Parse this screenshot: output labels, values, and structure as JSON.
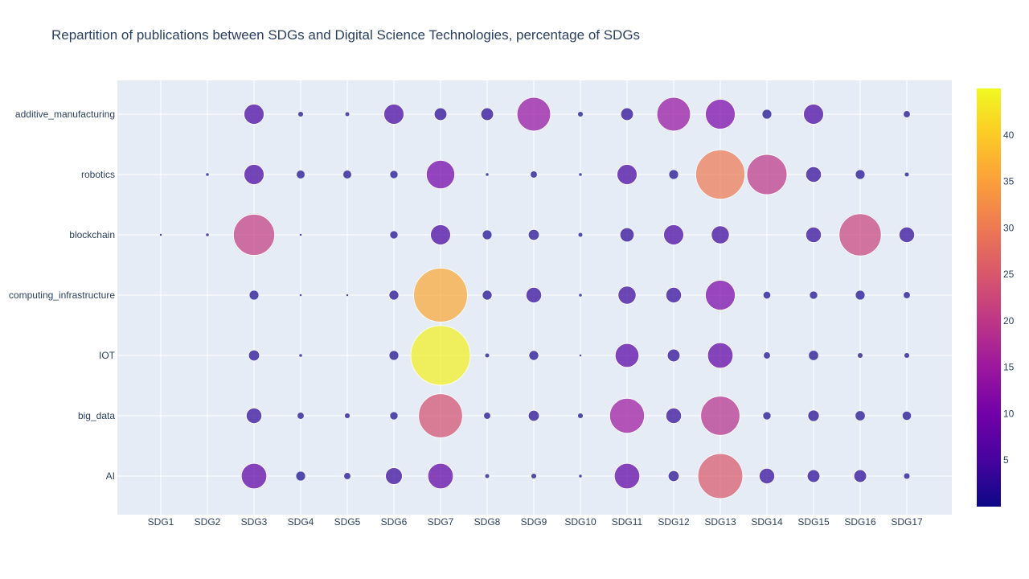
{
  "chart_data": {
    "type": "scatter",
    "title": "Repartition of publications between SDGs and Digital Science Technologies, percentage of SDGs",
    "x_categories": [
      "SDG1",
      "SDG2",
      "SDG3",
      "SDG4",
      "SDG5",
      "SDG6",
      "SDG7",
      "SDG8",
      "SDG9",
      "SDG10",
      "SDG11",
      "SDG12",
      "SDG13",
      "SDG14",
      "SDG15",
      "SDG16",
      "SDG17"
    ],
    "y_categories": [
      "AI",
      "big_data",
      "IOT",
      "computing_infrastructure",
      "blockchain",
      "robotics",
      "additive_manufacturing"
    ],
    "series": [
      {
        "name": "additive_manufacturing",
        "values": [
          0,
          0,
          5,
          0.3,
          0.2,
          5,
          2,
          2,
          14,
          0.3,
          2,
          14,
          11,
          1,
          5,
          0,
          0.5
        ]
      },
      {
        "name": "robotics",
        "values": [
          0,
          0.1,
          5,
          0.8,
          0.8,
          0.7,
          10,
          0.1,
          0.5,
          0.1,
          5,
          1,
          30,
          20,
          3,
          1,
          0.2
        ]
      },
      {
        "name": "blockchain",
        "values": [
          0.05,
          0.1,
          21,
          0.05,
          0,
          0.7,
          5,
          1,
          1.5,
          0.2,
          2.5,
          5,
          4,
          0,
          3,
          22,
          3
        ]
      },
      {
        "name": "computing_infrastructure",
        "values": [
          0,
          0,
          1,
          0.05,
          0.05,
          1.2,
          36,
          1.2,
          3,
          0.1,
          4,
          3,
          11,
          0.6,
          0.7,
          1,
          0.5
        ]
      },
      {
        "name": "IOT",
        "values": [
          0,
          0,
          1.5,
          0.1,
          0,
          1,
          44,
          0.2,
          1.2,
          0.05,
          7,
          2,
          8,
          0.5,
          1.1,
          0.3,
          0.3
        ]
      },
      {
        "name": "big_data",
        "values": [
          0,
          0,
          3,
          0.5,
          0.3,
          0.7,
          24,
          0.5,
          1.5,
          0.3,
          15,
          3,
          19,
          0.7,
          1.6,
          1.1,
          0.9
        ]
      },
      {
        "name": "AI",
        "values": [
          0,
          0,
          8,
          1,
          0.5,
          3.5,
          8,
          0.2,
          0.3,
          0.1,
          8,
          1.5,
          25,
          3,
          2,
          2,
          0.4
        ]
      }
    ],
    "colorbar": {
      "min": 0,
      "max": 45,
      "ticks": [
        5,
        10,
        15,
        20,
        25,
        30,
        35,
        40
      ]
    },
    "colors": {
      "plot_bg": "#e5ecf6",
      "grid": "#ffffff",
      "text": "#2a3f5f"
    },
    "colorscale": [
      "#0d0887",
      "#46039f",
      "#7201a8",
      "#9c179e",
      "#bd3786",
      "#d8576b",
      "#ed7953",
      "#fb9f3a",
      "#fdca26",
      "#f0f921"
    ],
    "legend": "none",
    "grid": true,
    "xlabel": "",
    "ylabel": ""
  }
}
